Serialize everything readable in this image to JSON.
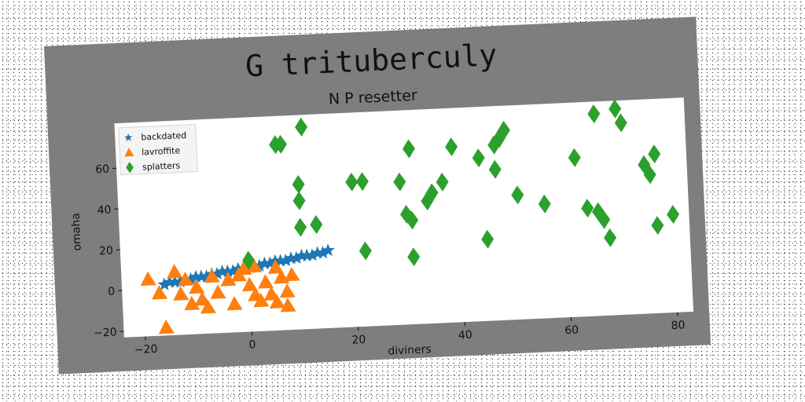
{
  "chart_data": {
    "type": "scatter",
    "title": "G trituberculy",
    "subtitle": "N P resetter",
    "xlabel": "diviners",
    "ylabel": "omaha",
    "xlim": [
      -24,
      83
    ],
    "ylim": [
      -23,
      82
    ],
    "xticks": [
      -20,
      0,
      20,
      40,
      60,
      80
    ],
    "yticks": [
      -20,
      0,
      20,
      40,
      60
    ],
    "grid": false,
    "legend_position": "top-left",
    "series": [
      {
        "name": "backdated",
        "marker": "star",
        "color": "#1f77b4",
        "points": [
          [
            -16,
            2
          ],
          [
            -15,
            3
          ],
          [
            -14,
            3
          ],
          [
            -13,
            3
          ],
          [
            -12,
            4
          ],
          [
            -11,
            4
          ],
          [
            -10,
            5
          ],
          [
            -9,
            5
          ],
          [
            -8,
            5
          ],
          [
            -7,
            6
          ],
          [
            -6,
            6
          ],
          [
            -5,
            7
          ],
          [
            -4,
            7
          ],
          [
            -3,
            7
          ],
          [
            -2,
            8
          ],
          [
            -1,
            8
          ],
          [
            0,
            9
          ],
          [
            1,
            9
          ],
          [
            2,
            9
          ],
          [
            3,
            10
          ],
          [
            4,
            10
          ],
          [
            5,
            11
          ],
          [
            6,
            11
          ],
          [
            7,
            11
          ],
          [
            8,
            12
          ],
          [
            9,
            12
          ],
          [
            10,
            13
          ],
          [
            11,
            13
          ],
          [
            12,
            13
          ],
          [
            13,
            14
          ],
          [
            14,
            14
          ],
          [
            15,
            15
          ]
        ]
      },
      {
        "name": "lavroffite",
        "marker": "triangle",
        "color": "#ff7f0e",
        "points": [
          [
            -19,
            5
          ],
          [
            -17,
            -2
          ],
          [
            -14,
            8
          ],
          [
            -13,
            -3
          ],
          [
            -12,
            4
          ],
          [
            -11,
            -8
          ],
          [
            -10,
            0
          ],
          [
            -9,
            -6
          ],
          [
            -8,
            -10
          ],
          [
            -7,
            5
          ],
          [
            -6,
            -3
          ],
          [
            -4,
            3
          ],
          [
            -3,
            -9
          ],
          [
            -2,
            5
          ],
          [
            -1,
            8
          ],
          [
            0,
            0
          ],
          [
            1,
            -5
          ],
          [
            1,
            9
          ],
          [
            2,
            -8
          ],
          [
            3,
            1
          ],
          [
            4,
            -5
          ],
          [
            5,
            -9
          ],
          [
            5,
            8
          ],
          [
            6,
            3
          ],
          [
            7,
            -4
          ],
          [
            7,
            -11
          ],
          [
            8,
            4
          ],
          [
            -16,
            -19
          ]
        ]
      },
      {
        "name": "splatters",
        "marker": "diamond",
        "color": "#2ca02c",
        "points": [
          [
            11,
            76
          ],
          [
            7,
            68
          ],
          [
            6,
            68
          ],
          [
            10,
            48
          ],
          [
            10,
            40
          ],
          [
            10,
            27
          ],
          [
            13,
            28
          ],
          [
            0,
            12
          ],
          [
            20,
            48
          ],
          [
            22,
            48
          ],
          [
            22,
            14
          ],
          [
            29,
            47
          ],
          [
            30,
            31
          ],
          [
            31,
            28
          ],
          [
            31,
            63
          ],
          [
            31,
            10
          ],
          [
            34,
            37
          ],
          [
            35,
            41
          ],
          [
            37,
            46
          ],
          [
            39,
            63
          ],
          [
            44,
            57
          ],
          [
            47,
            51
          ],
          [
            47,
            63
          ],
          [
            48,
            66
          ],
          [
            49,
            70
          ],
          [
            51,
            38
          ],
          [
            45,
            17
          ],
          [
            56,
            33
          ],
          [
            62,
            55
          ],
          [
            64,
            30
          ],
          [
            66,
            28
          ],
          [
            67,
            24
          ],
          [
            68,
            15
          ],
          [
            66,
            76
          ],
          [
            70,
            78
          ],
          [
            71,
            71
          ],
          [
            75,
            50
          ],
          [
            76,
            45
          ],
          [
            77,
            55
          ],
          [
            77,
            20
          ],
          [
            80,
            25
          ]
        ]
      }
    ]
  }
}
